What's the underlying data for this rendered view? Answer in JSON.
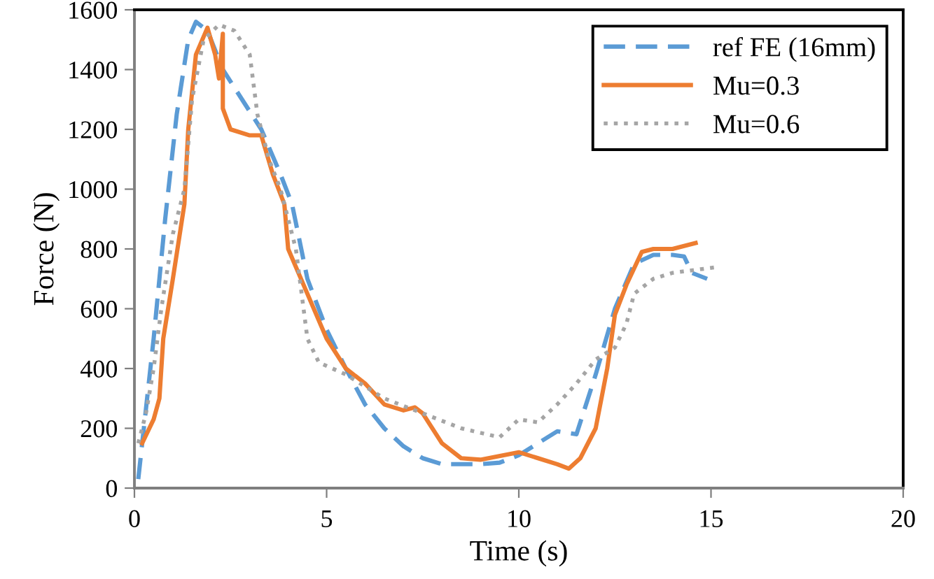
{
  "chart_data": {
    "type": "line",
    "xlabel": "Time (s)",
    "ylabel": "Force (N)",
    "xlim": [
      0,
      20
    ],
    "xticks": [
      0,
      5,
      10,
      15,
      20
    ],
    "ylim": [
      0,
      1600
    ],
    "yticks": [
      0,
      200,
      400,
      600,
      800,
      1000,
      1200,
      1400,
      1600
    ],
    "grid": false,
    "legend": "top right",
    "series": [
      {
        "name": "ref FE (16mm)",
        "color": "#5b9bd5",
        "line_style": "dashed",
        "x": [
          0.1,
          0.5,
          0.8,
          1.1,
          1.4,
          1.6,
          1.9,
          2.3,
          2.8,
          3.3,
          3.8,
          4.1,
          4.5,
          5,
          5.5,
          6,
          6.5,
          7,
          7.5,
          8,
          9,
          9.5,
          10,
          10.5,
          11,
          11.5,
          11.8,
          12,
          12.5,
          13,
          13.5,
          14,
          14.3,
          14.5,
          14.9
        ],
        "values": [
          30,
          500,
          900,
          1250,
          1500,
          1560,
          1530,
          1400,
          1300,
          1200,
          1050,
          950,
          700,
          530,
          400,
          280,
          200,
          140,
          100,
          80,
          80,
          85,
          110,
          150,
          190,
          180,
          300,
          380,
          600,
          750,
          780,
          780,
          775,
          720,
          700
        ]
      },
      {
        "name": "Mu=0.3",
        "color": "#ed7d31",
        "line_style": "solid",
        "x": [
          0.2,
          0.5,
          0.65,
          0.75,
          1.0,
          1.3,
          1.4,
          1.6,
          1.9,
          2.1,
          2.2,
          2.3,
          2.3,
          2.5,
          3.0,
          3.3,
          3.6,
          3.9,
          4.0,
          4.5,
          5,
          5.5,
          6,
          6.5,
          7,
          7.3,
          7.5,
          8,
          8.5,
          9,
          10,
          10.5,
          11,
          11.3,
          11.6,
          12,
          12.3,
          12.5,
          12.8,
          13.2,
          13.5,
          14,
          14.6
        ],
        "values": [
          150,
          230,
          300,
          500,
          700,
          950,
          1200,
          1450,
          1540,
          1450,
          1370,
          1520,
          1270,
          1200,
          1180,
          1180,
          1050,
          950,
          800,
          650,
          500,
          400,
          350,
          280,
          260,
          270,
          250,
          150,
          100,
          95,
          120,
          100,
          80,
          65,
          100,
          200,
          400,
          580,
          680,
          790,
          800,
          800,
          820
        ]
      },
      {
        "name": "Mu=0.6",
        "color": "#a5a5a5",
        "line_style": "dotted",
        "x": [
          0.1,
          0.3,
          0.5,
          0.7,
          1.0,
          1.3,
          1.5,
          1.8,
          2.2,
          2.6,
          3.0,
          3.2,
          3.5,
          3.8,
          4.2,
          4.5,
          4.8,
          5.5,
          6.5,
          7.5,
          8.5,
          9.5,
          10,
          10.5,
          11,
          11.5,
          12,
          12.5,
          12.8,
          13,
          13.5,
          14,
          15.2
        ],
        "values": [
          150,
          250,
          400,
          600,
          850,
          1000,
          1300,
          1500,
          1550,
          1530,
          1450,
          1250,
          1100,
          1000,
          800,
          500,
          420,
          380,
          300,
          250,
          200,
          170,
          230,
          220,
          280,
          350,
          430,
          470,
          550,
          650,
          700,
          720,
          740
        ]
      }
    ]
  }
}
